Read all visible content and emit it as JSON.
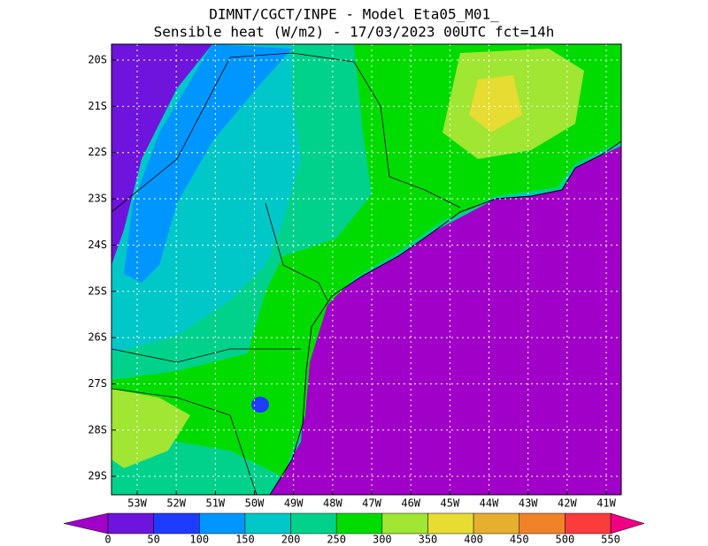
{
  "header": {
    "title_line1": "DIMNT/CGCT/INPE -  Model Eta05_M01_",
    "title_line2": "Sensible heat (W/m2) -  17/03/2023 00UTC fct=14h"
  },
  "map": {
    "lat_labels": [
      "20S",
      "21S",
      "22S",
      "23S",
      "24S",
      "25S",
      "26S",
      "27S",
      "28S",
      "29S"
    ],
    "lon_labels": [
      "53W",
      "52W",
      "51W",
      "50W",
      "49W",
      "48W",
      "47W",
      "46W",
      "45W",
      "44W",
      "43W",
      "42W",
      "41W"
    ]
  },
  "colorbar": {
    "levels": [
      0,
      50,
      100,
      150,
      200,
      250,
      300,
      350,
      400,
      450,
      500,
      550
    ],
    "colors": [
      "#a000c8",
      "#6e14dc",
      "#1e3cff",
      "#0096ff",
      "#00c8c8",
      "#00d28c",
      "#00dc00",
      "#a0e632",
      "#e6dc32",
      "#e6af2d",
      "#f08228",
      "#fa3c3c",
      "#f00082"
    ]
  }
}
